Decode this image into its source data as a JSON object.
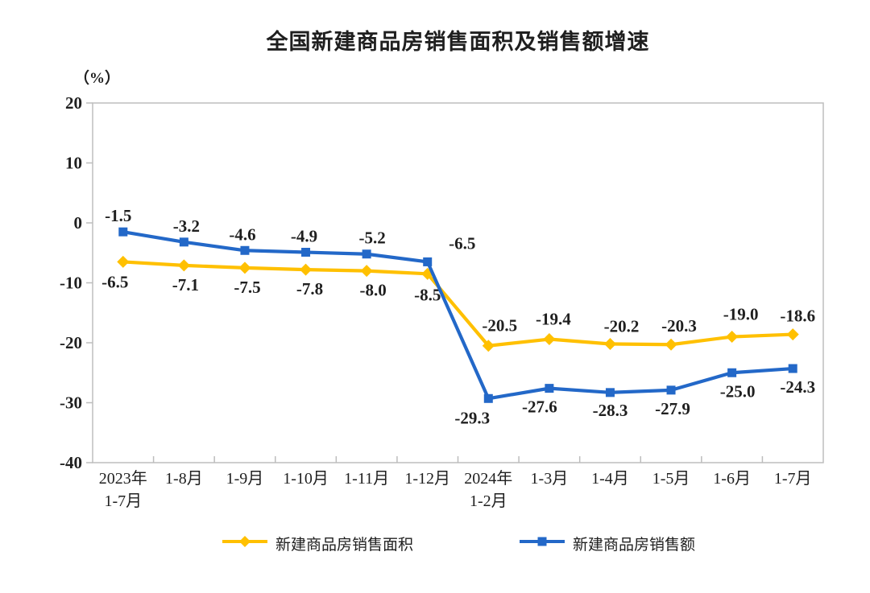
{
  "chart": {
    "title": "全国新建商品房销售面积及销售额增速",
    "unit_label": "（%）",
    "colors": {
      "series_area": "#FFC000",
      "series_value": "#2368C8",
      "axis_line": "#BDBDBD",
      "text": "#1F1F1F"
    },
    "legend": [
      {
        "name": "新建商品房销售面积",
        "marker": "diamond"
      },
      {
        "name": "新建商品房销售额",
        "marker": "square"
      }
    ]
  },
  "chart_data": {
    "type": "line",
    "title": "全国新建商品房销售面积及销售额增速",
    "ylabel": "（%）",
    "ylim": [
      -40,
      20
    ],
    "ytick_step": 10,
    "grid": false,
    "legend_position": "bottom",
    "data_labels": true,
    "categories": [
      [
        "2023年",
        "1-7月"
      ],
      [
        "1-8月"
      ],
      [
        "1-9月"
      ],
      [
        "1-10月"
      ],
      [
        "1-11月"
      ],
      [
        "1-12月"
      ],
      [
        "2024年",
        "1-2月"
      ],
      [
        "1-3月"
      ],
      [
        "1-4月"
      ],
      [
        "1-5月"
      ],
      [
        "1-6月"
      ],
      [
        "1-7月"
      ]
    ],
    "series": [
      {
        "name": "新建商品房销售面积",
        "marker": "diamond",
        "color": "#FFC000",
        "values": [
          -6.5,
          -7.1,
          -7.5,
          -7.8,
          -8.0,
          -8.5,
          -20.5,
          -19.4,
          -20.2,
          -20.3,
          -19.0,
          -18.6
        ]
      },
      {
        "name": "新建商品房销售额",
        "marker": "square",
        "color": "#2368C8",
        "values": [
          -1.5,
          -3.2,
          -4.6,
          -4.9,
          -5.2,
          -6.5,
          -29.3,
          -27.6,
          -28.3,
          -27.9,
          -25.0,
          -24.3
        ]
      }
    ]
  }
}
